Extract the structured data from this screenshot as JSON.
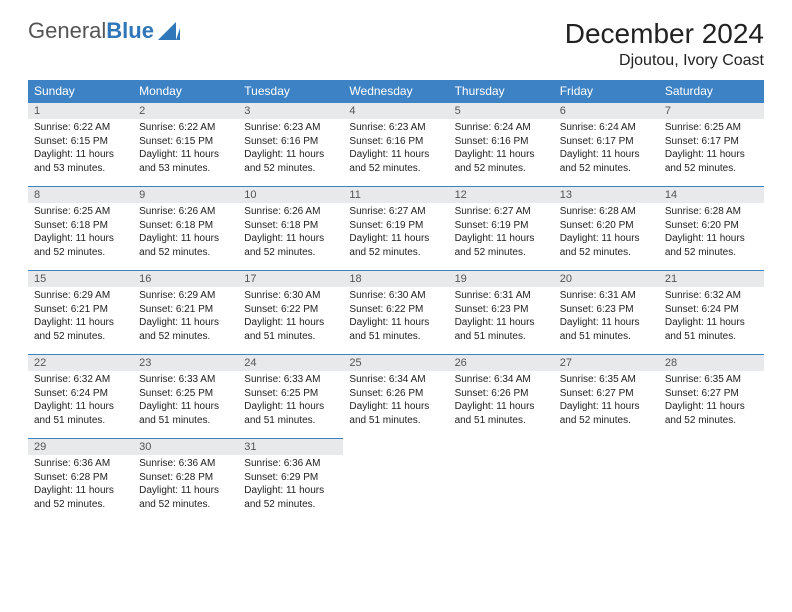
{
  "logo": {
    "text1": "General",
    "text2": "Blue"
  },
  "title": "December 2024",
  "location": "Djoutou, Ivory Coast",
  "colors": {
    "header_bg": "#3d82c4",
    "header_fg": "#ffffff",
    "daynum_bg": "#e7e9eb",
    "rule": "#3d82c4",
    "logo_blue": "#2f77b9"
  },
  "weekdays": [
    "Sunday",
    "Monday",
    "Tuesday",
    "Wednesday",
    "Thursday",
    "Friday",
    "Saturday"
  ],
  "days": [
    {
      "n": 1,
      "sr": "6:22 AM",
      "ss": "6:15 PM",
      "dl": "11 hours and 53 minutes."
    },
    {
      "n": 2,
      "sr": "6:22 AM",
      "ss": "6:15 PM",
      "dl": "11 hours and 53 minutes."
    },
    {
      "n": 3,
      "sr": "6:23 AM",
      "ss": "6:16 PM",
      "dl": "11 hours and 52 minutes."
    },
    {
      "n": 4,
      "sr": "6:23 AM",
      "ss": "6:16 PM",
      "dl": "11 hours and 52 minutes."
    },
    {
      "n": 5,
      "sr": "6:24 AM",
      "ss": "6:16 PM",
      "dl": "11 hours and 52 minutes."
    },
    {
      "n": 6,
      "sr": "6:24 AM",
      "ss": "6:17 PM",
      "dl": "11 hours and 52 minutes."
    },
    {
      "n": 7,
      "sr": "6:25 AM",
      "ss": "6:17 PM",
      "dl": "11 hours and 52 minutes."
    },
    {
      "n": 8,
      "sr": "6:25 AM",
      "ss": "6:18 PM",
      "dl": "11 hours and 52 minutes."
    },
    {
      "n": 9,
      "sr": "6:26 AM",
      "ss": "6:18 PM",
      "dl": "11 hours and 52 minutes."
    },
    {
      "n": 10,
      "sr": "6:26 AM",
      "ss": "6:18 PM",
      "dl": "11 hours and 52 minutes."
    },
    {
      "n": 11,
      "sr": "6:27 AM",
      "ss": "6:19 PM",
      "dl": "11 hours and 52 minutes."
    },
    {
      "n": 12,
      "sr": "6:27 AM",
      "ss": "6:19 PM",
      "dl": "11 hours and 52 minutes."
    },
    {
      "n": 13,
      "sr": "6:28 AM",
      "ss": "6:20 PM",
      "dl": "11 hours and 52 minutes."
    },
    {
      "n": 14,
      "sr": "6:28 AM",
      "ss": "6:20 PM",
      "dl": "11 hours and 52 minutes."
    },
    {
      "n": 15,
      "sr": "6:29 AM",
      "ss": "6:21 PM",
      "dl": "11 hours and 52 minutes."
    },
    {
      "n": 16,
      "sr": "6:29 AM",
      "ss": "6:21 PM",
      "dl": "11 hours and 52 minutes."
    },
    {
      "n": 17,
      "sr": "6:30 AM",
      "ss": "6:22 PM",
      "dl": "11 hours and 51 minutes."
    },
    {
      "n": 18,
      "sr": "6:30 AM",
      "ss": "6:22 PM",
      "dl": "11 hours and 51 minutes."
    },
    {
      "n": 19,
      "sr": "6:31 AM",
      "ss": "6:23 PM",
      "dl": "11 hours and 51 minutes."
    },
    {
      "n": 20,
      "sr": "6:31 AM",
      "ss": "6:23 PM",
      "dl": "11 hours and 51 minutes."
    },
    {
      "n": 21,
      "sr": "6:32 AM",
      "ss": "6:24 PM",
      "dl": "11 hours and 51 minutes."
    },
    {
      "n": 22,
      "sr": "6:32 AM",
      "ss": "6:24 PM",
      "dl": "11 hours and 51 minutes."
    },
    {
      "n": 23,
      "sr": "6:33 AM",
      "ss": "6:25 PM",
      "dl": "11 hours and 51 minutes."
    },
    {
      "n": 24,
      "sr": "6:33 AM",
      "ss": "6:25 PM",
      "dl": "11 hours and 51 minutes."
    },
    {
      "n": 25,
      "sr": "6:34 AM",
      "ss": "6:26 PM",
      "dl": "11 hours and 51 minutes."
    },
    {
      "n": 26,
      "sr": "6:34 AM",
      "ss": "6:26 PM",
      "dl": "11 hours and 51 minutes."
    },
    {
      "n": 27,
      "sr": "6:35 AM",
      "ss": "6:27 PM",
      "dl": "11 hours and 52 minutes."
    },
    {
      "n": 28,
      "sr": "6:35 AM",
      "ss": "6:27 PM",
      "dl": "11 hours and 52 minutes."
    },
    {
      "n": 29,
      "sr": "6:36 AM",
      "ss": "6:28 PM",
      "dl": "11 hours and 52 minutes."
    },
    {
      "n": 30,
      "sr": "6:36 AM",
      "ss": "6:28 PM",
      "dl": "11 hours and 52 minutes."
    },
    {
      "n": 31,
      "sr": "6:36 AM",
      "ss": "6:29 PM",
      "dl": "11 hours and 52 minutes."
    }
  ],
  "labels": {
    "sunrise": "Sunrise:",
    "sunset": "Sunset:",
    "daylight": "Daylight:"
  },
  "layout": {
    "start_weekday": 0,
    "cols": 7
  }
}
